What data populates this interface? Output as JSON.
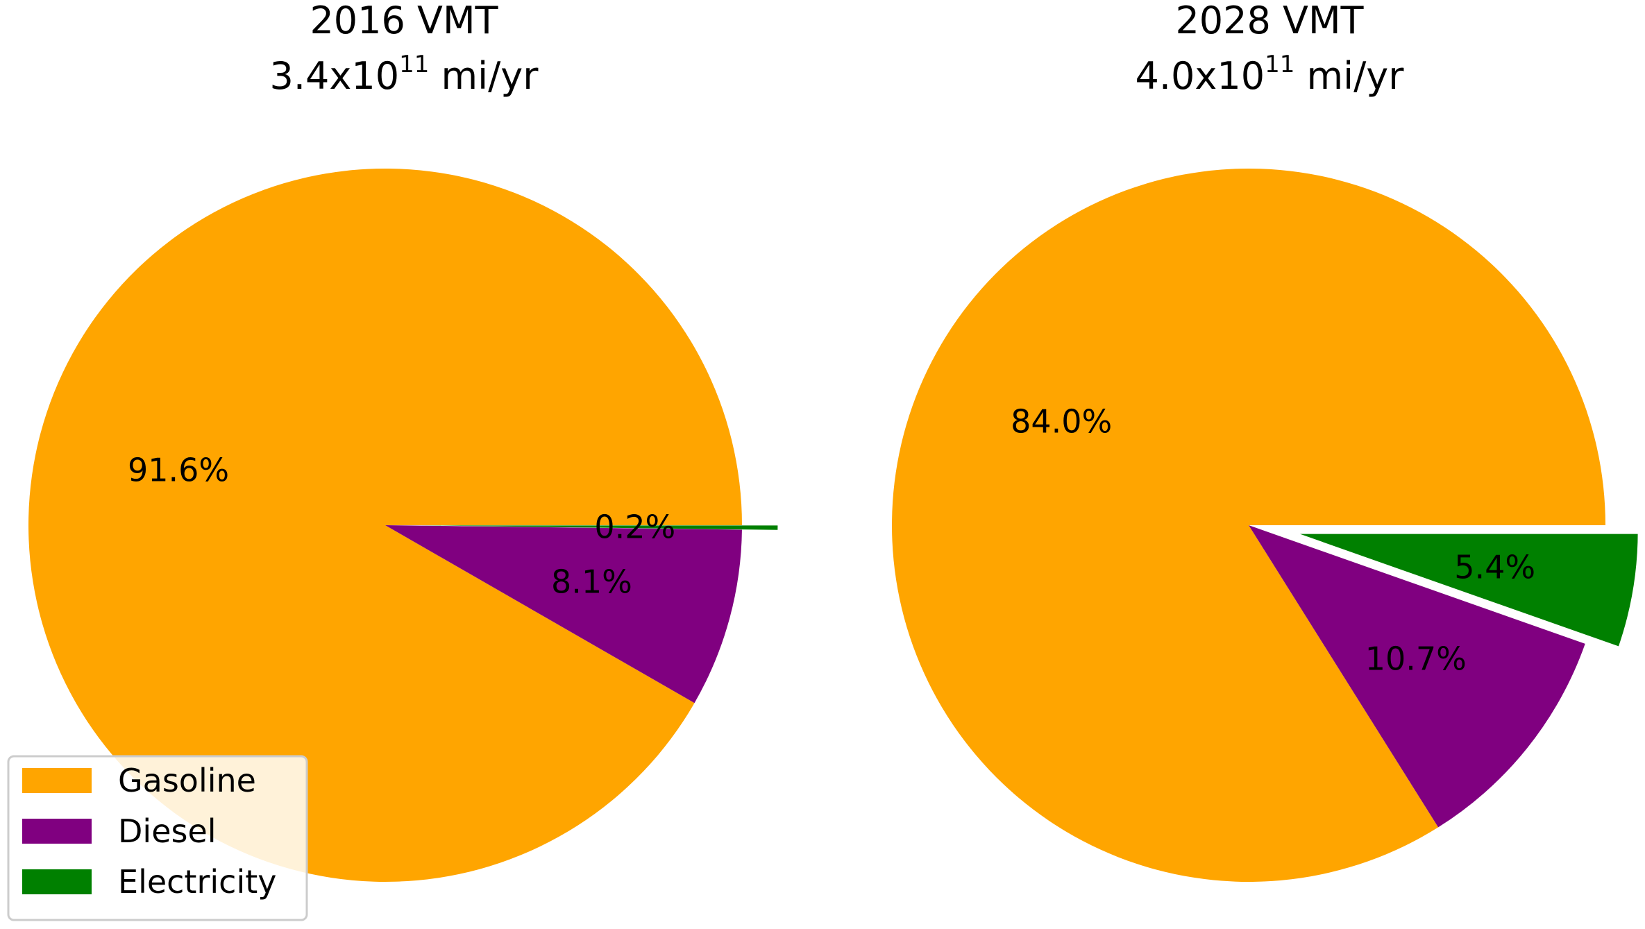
{
  "chart_data": [
    {
      "type": "pie",
      "title": "2016 VMT",
      "subtitle": {
        "prefix": "3.4x10",
        "exponent": "11",
        "suffix": " mi/yr"
      },
      "categories": [
        "Gasoline",
        "Diesel",
        "Electricity"
      ],
      "values": [
        91.6,
        8.1,
        0.2
      ],
      "labels": [
        "91.6%",
        "8.1%",
        "0.2%"
      ],
      "exploded": [
        "Electricity"
      ],
      "legend": {
        "placement": "lower-left",
        "entries": [
          "Gasoline",
          "Diesel",
          "Electricity"
        ]
      }
    },
    {
      "type": "pie",
      "title": "2028 VMT",
      "subtitle": {
        "prefix": "4.0x10",
        "exponent": "11",
        "suffix": " mi/yr"
      },
      "categories": [
        "Gasoline",
        "Diesel",
        "Electricity"
      ],
      "values": [
        84.0,
        10.7,
        5.4
      ],
      "labels": [
        "84.0%",
        "10.7%",
        "5.4%"
      ],
      "exploded": [
        "Electricity"
      ]
    }
  ],
  "colors": {
    "Gasoline": "#FFA500",
    "Diesel": "#800080",
    "Electricity": "#008000"
  }
}
